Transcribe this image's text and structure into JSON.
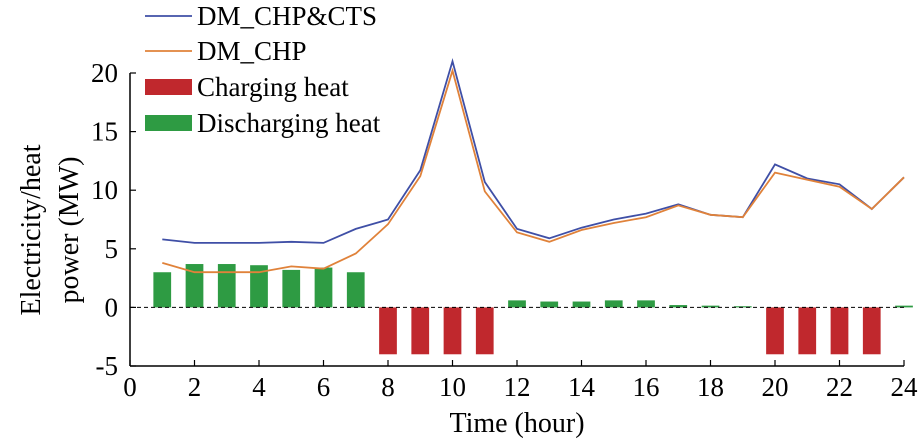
{
  "chart_data": {
    "type": "bar",
    "xlabel": "Time (hour)",
    "ylabel_line1": "Electricity/heat",
    "ylabel_line2": "power (MW)",
    "xlim": [
      0,
      24
    ],
    "ylim": [
      -5,
      20
    ],
    "xticks": [
      "0",
      "2",
      "4",
      "6",
      "8",
      "10",
      "12",
      "14",
      "16",
      "18",
      "20",
      "22",
      "24"
    ],
    "yticks": [
      "-5",
      "0",
      "5",
      "10",
      "15",
      "20"
    ],
    "x": [
      1,
      2,
      3,
      4,
      5,
      6,
      7,
      8,
      9,
      10,
      11,
      12,
      13,
      14,
      15,
      16,
      17,
      18,
      19,
      20,
      21,
      22,
      23,
      24
    ],
    "series": [
      {
        "name": "DM_CHP&CTS",
        "kind": "line",
        "color": "#3f4fa6",
        "values": [
          5.8,
          5.5,
          5.5,
          5.5,
          5.6,
          5.5,
          6.7,
          7.5,
          11.7,
          21.0,
          10.7,
          6.7,
          5.9,
          6.8,
          7.5,
          8.0,
          8.8,
          7.9,
          7.7,
          12.2,
          11.0,
          10.5,
          8.4,
          11.1
        ]
      },
      {
        "name": "DM_CHP",
        "kind": "line",
        "color": "#e0823a",
        "values": [
          3.8,
          3.0,
          3.0,
          3.0,
          3.5,
          3.3,
          4.6,
          7.1,
          11.2,
          20.2,
          9.9,
          6.4,
          5.6,
          6.6,
          7.2,
          7.7,
          8.7,
          7.9,
          7.7,
          11.5,
          10.9,
          10.3,
          8.4,
          11.1
        ]
      },
      {
        "name": "Charging heat",
        "kind": "bar",
        "color": "#c0282d",
        "values": [
          0,
          0,
          0,
          0,
          0,
          0,
          0,
          -4,
          -4,
          -4,
          -4,
          0,
          0,
          0,
          0,
          0,
          0,
          0,
          0,
          -4,
          -4,
          -4,
          -4,
          0
        ]
      },
      {
        "name": "Discharging heat",
        "kind": "bar",
        "color": "#2e9b43",
        "values": [
          3.0,
          3.7,
          3.7,
          3.6,
          3.2,
          3.4,
          3.0,
          0,
          0,
          0,
          0,
          0.6,
          0.5,
          0.5,
          0.6,
          0.6,
          0.2,
          0.15,
          0.1,
          0,
          0,
          0,
          0,
          0.15
        ]
      }
    ],
    "legend_position": "top-left",
    "grid": false
  }
}
